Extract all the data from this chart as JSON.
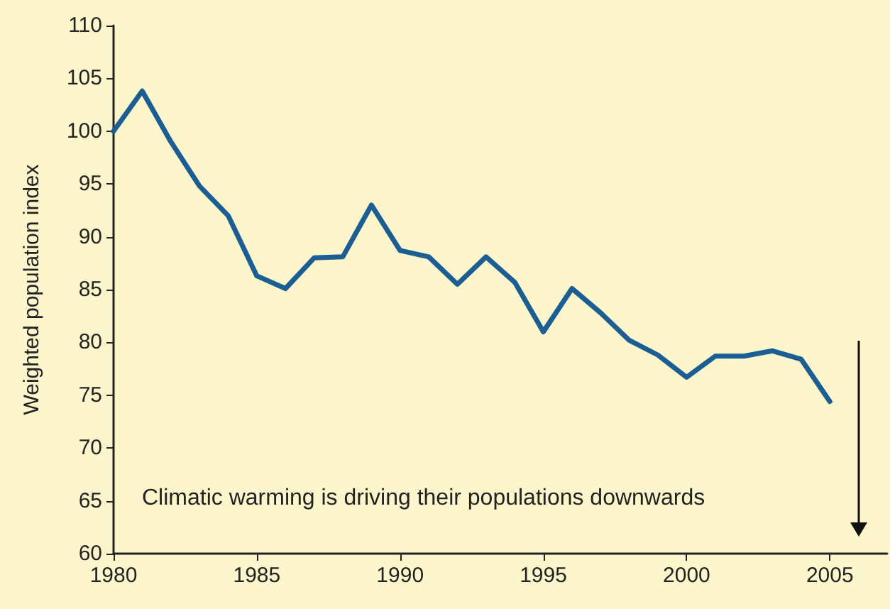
{
  "chart_data": {
    "type": "line",
    "ylabel": "Weighted population index",
    "x": [
      1980,
      1981,
      1982,
      1983,
      1984,
      1985,
      1986,
      1987,
      1988,
      1989,
      1990,
      1991,
      1992,
      1993,
      1994,
      1995,
      1996,
      1997,
      1998,
      1999,
      2000,
      2001,
      2002,
      2003,
      2004,
      2005
    ],
    "series": [
      {
        "color": "#1a5e94",
        "values": [
          100,
          103.8,
          99,
          94.8,
          92,
          86.3,
          85.1,
          88,
          88.1,
          93,
          88.7,
          88.1,
          85.5,
          88.1,
          85.7,
          81,
          85.1,
          82.8,
          80.2,
          78.8,
          76.7,
          78.7,
          78.7,
          79.2,
          78.4,
          74.4
        ]
      }
    ],
    "xlim": [
      1980,
      2007
    ],
    "xticks": [
      1980,
      1985,
      1990,
      1995,
      2000,
      2005
    ],
    "ylim": [
      60,
      110
    ],
    "yticks": [
      60,
      65,
      70,
      75,
      80,
      85,
      90,
      95,
      100,
      105,
      110
    ],
    "grid": false,
    "marker": "none",
    "line_style": "solid",
    "annotations": [
      "Climatic warming is driving their populations downwards"
    ]
  }
}
